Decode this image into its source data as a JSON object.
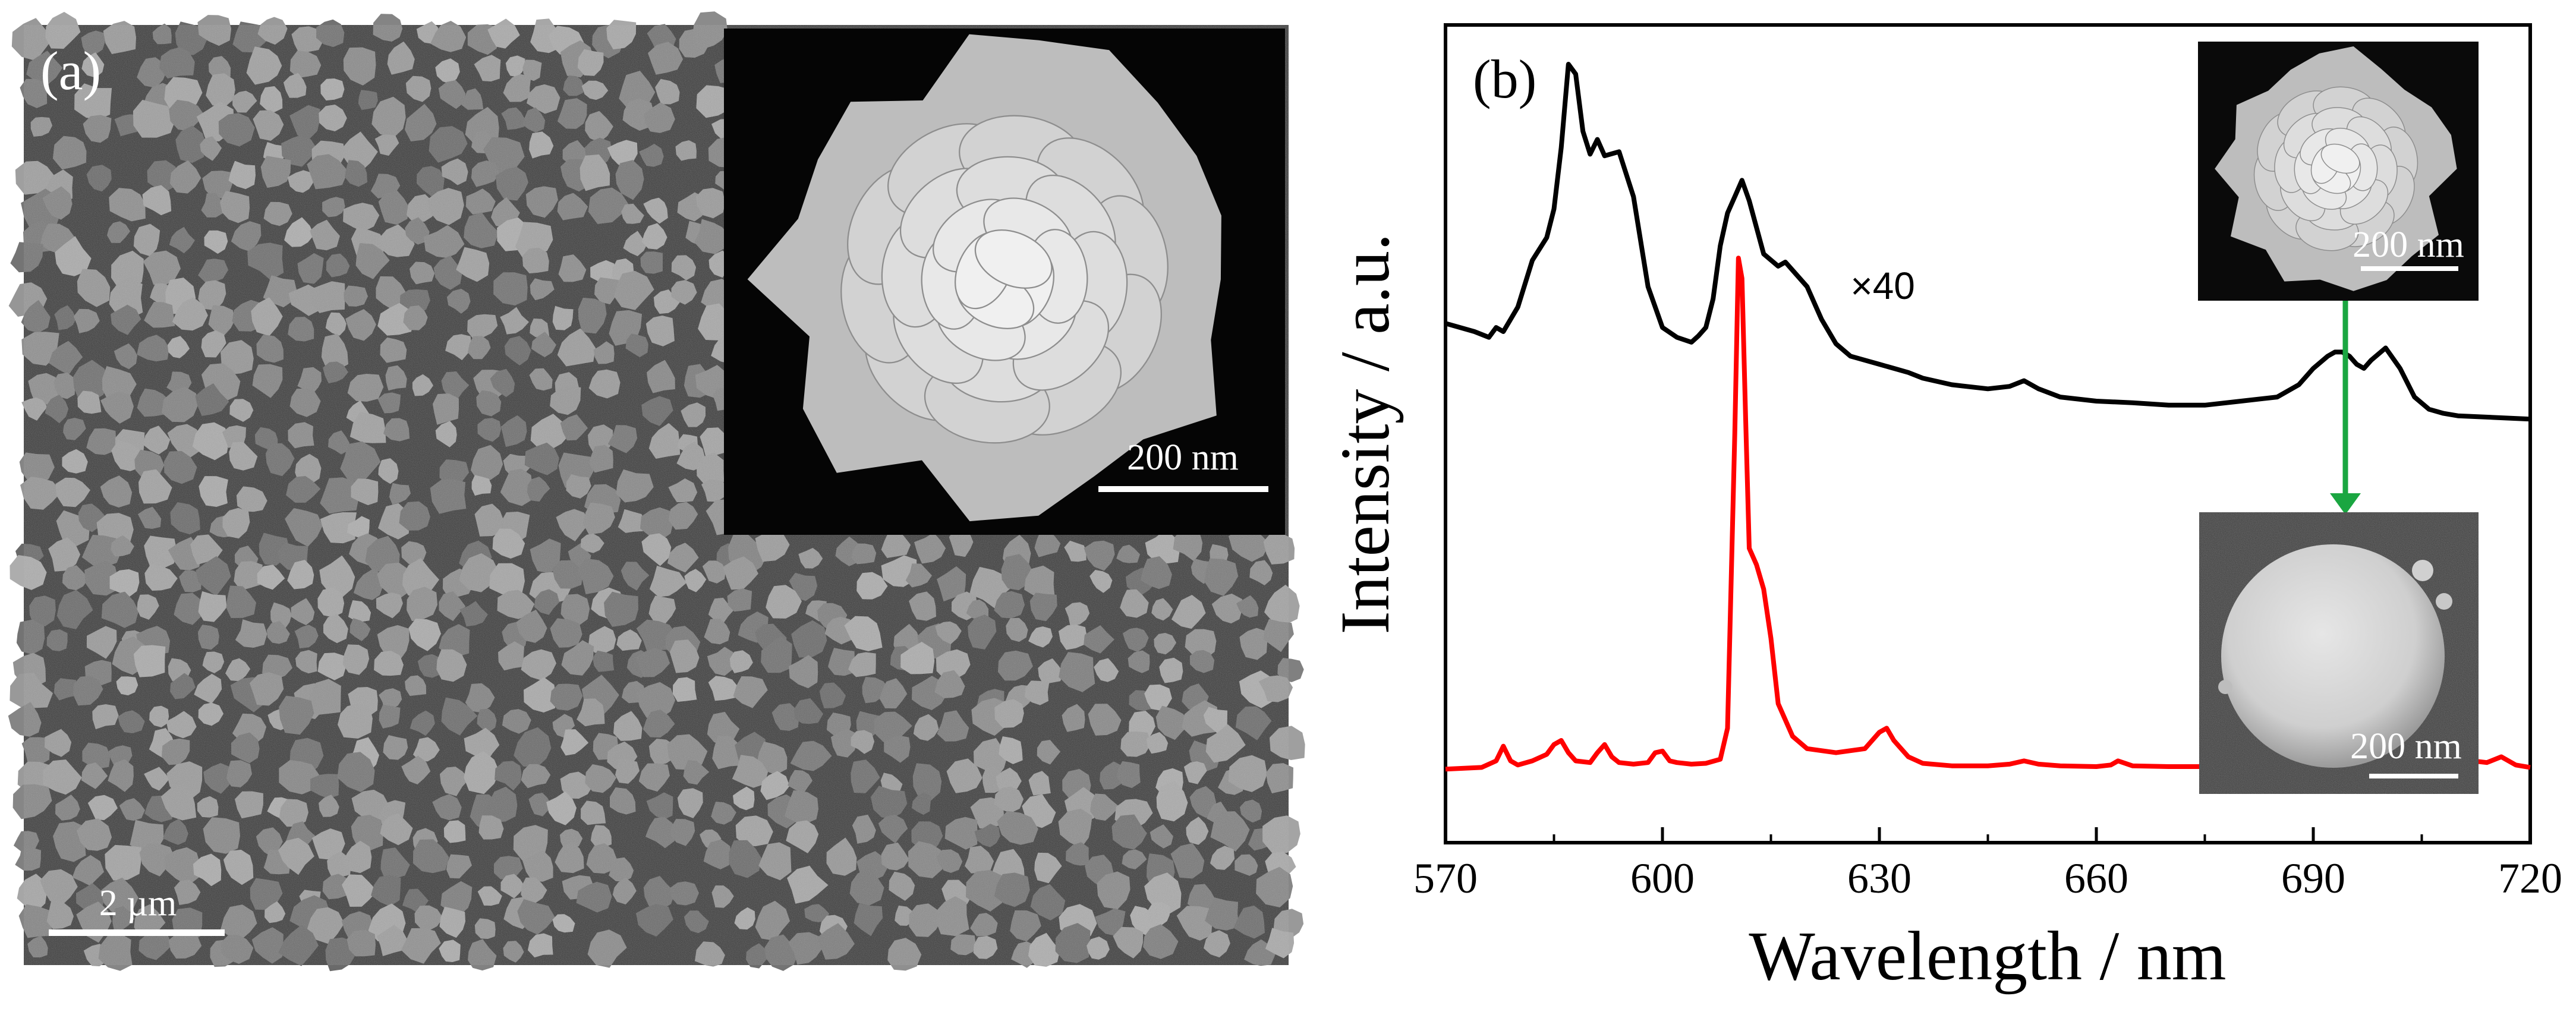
{
  "panel_a": {
    "label": "(a)",
    "scale_bar": "2 µm",
    "inset": {
      "scale_bar": "200 nm"
    }
  },
  "panel_b": {
    "label": "(b)",
    "insets": [
      {
        "scale_bar": "200 nm"
      },
      {
        "scale_bar": "200 nm"
      }
    ],
    "arrow_color": "#1aa641"
  },
  "chart_data": {
    "type": "line",
    "title": "",
    "xlabel": "Wavelength / nm",
    "ylabel": "Intensity / a.u.",
    "xlim": [
      570,
      720
    ],
    "ylim": [
      0,
      1.0
    ],
    "xticks": [
      "570",
      "600",
      "630",
      "660",
      "690",
      "720"
    ],
    "yticks_shown": false,
    "grid": false,
    "annotations": [
      {
        "text": "×40",
        "x": 626,
        "y": 0.665
      }
    ],
    "series": [
      {
        "color": "#000000",
        "x": [
          570,
          574,
          576,
          577,
          578,
          580,
          582,
          584,
          585,
          586,
          587,
          588,
          589,
          590,
          591,
          592,
          594,
          596,
          598,
          600,
          602,
          604,
          605,
          606,
          607,
          608,
          609,
          610,
          611,
          612,
          614,
          616,
          617,
          618,
          620,
          622,
          624,
          626,
          628,
          630,
          632,
          634,
          636,
          640,
          645,
          648,
          650,
          652,
          655,
          660,
          665,
          670,
          675,
          680,
          685,
          688,
          690,
          692,
          693,
          694,
          695,
          696,
          697,
          698,
          700,
          702,
          704,
          706,
          708,
          710,
          715,
          720
        ],
        "y": [
          0.635,
          0.625,
          0.618,
          0.63,
          0.625,
          0.655,
          0.712,
          0.74,
          0.775,
          0.85,
          0.952,
          0.94,
          0.87,
          0.842,
          0.86,
          0.84,
          0.845,
          0.79,
          0.68,
          0.63,
          0.618,
          0.612,
          0.62,
          0.63,
          0.665,
          0.73,
          0.77,
          0.79,
          0.81,
          0.785,
          0.72,
          0.705,
          0.71,
          0.7,
          0.68,
          0.64,
          0.61,
          0.595,
          0.59,
          0.585,
          0.58,
          0.575,
          0.568,
          0.56,
          0.555,
          0.558,
          0.565,
          0.555,
          0.545,
          0.54,
          0.538,
          0.535,
          0.535,
          0.54,
          0.545,
          0.56,
          0.58,
          0.595,
          0.6,
          0.6,
          0.595,
          0.585,
          0.58,
          0.59,
          0.605,
          0.58,
          0.545,
          0.53,
          0.525,
          0.522,
          0.52,
          0.518
        ]
      },
      {
        "color": "#ff0000",
        "x": [
          570,
          575,
          577,
          578,
          579,
          580,
          582,
          584,
          585,
          586,
          587,
          588,
          590,
          591,
          592,
          593,
          594,
          596,
          598,
          599,
          600,
          601,
          602,
          604,
          606,
          608,
          609,
          610,
          610.5,
          611,
          611.5,
          612,
          613,
          614,
          615,
          616,
          618,
          620,
          624,
          628,
          629,
          630,
          631,
          632,
          634,
          636,
          640,
          645,
          648,
          650,
          652,
          655,
          660,
          662,
          663,
          665,
          670,
          675,
          680,
          688,
          690,
          692,
          694,
          696,
          700,
          705,
          707,
          708,
          709,
          710,
          711,
          712,
          714,
          716,
          718,
          720
        ],
        "y": [
          0.09,
          0.092,
          0.1,
          0.118,
          0.1,
          0.095,
          0.1,
          0.108,
          0.12,
          0.125,
          0.11,
          0.1,
          0.098,
          0.11,
          0.12,
          0.105,
          0.098,
          0.096,
          0.098,
          0.11,
          0.112,
          0.1,
          0.098,
          0.096,
          0.097,
          0.102,
          0.14,
          0.5,
          0.715,
          0.69,
          0.52,
          0.36,
          0.34,
          0.31,
          0.25,
          0.17,
          0.13,
          0.115,
          0.11,
          0.115,
          0.125,
          0.135,
          0.14,
          0.125,
          0.105,
          0.097,
          0.094,
          0.094,
          0.096,
          0.1,
          0.096,
          0.094,
          0.093,
          0.095,
          0.1,
          0.094,
          0.093,
          0.093,
          0.093,
          0.092,
          0.095,
          0.1,
          0.094,
          0.093,
          0.093,
          0.095,
          0.1,
          0.102,
          0.11,
          0.105,
          0.118,
          0.1,
          0.098,
          0.105,
          0.095,
          0.092
        ]
      }
    ]
  }
}
